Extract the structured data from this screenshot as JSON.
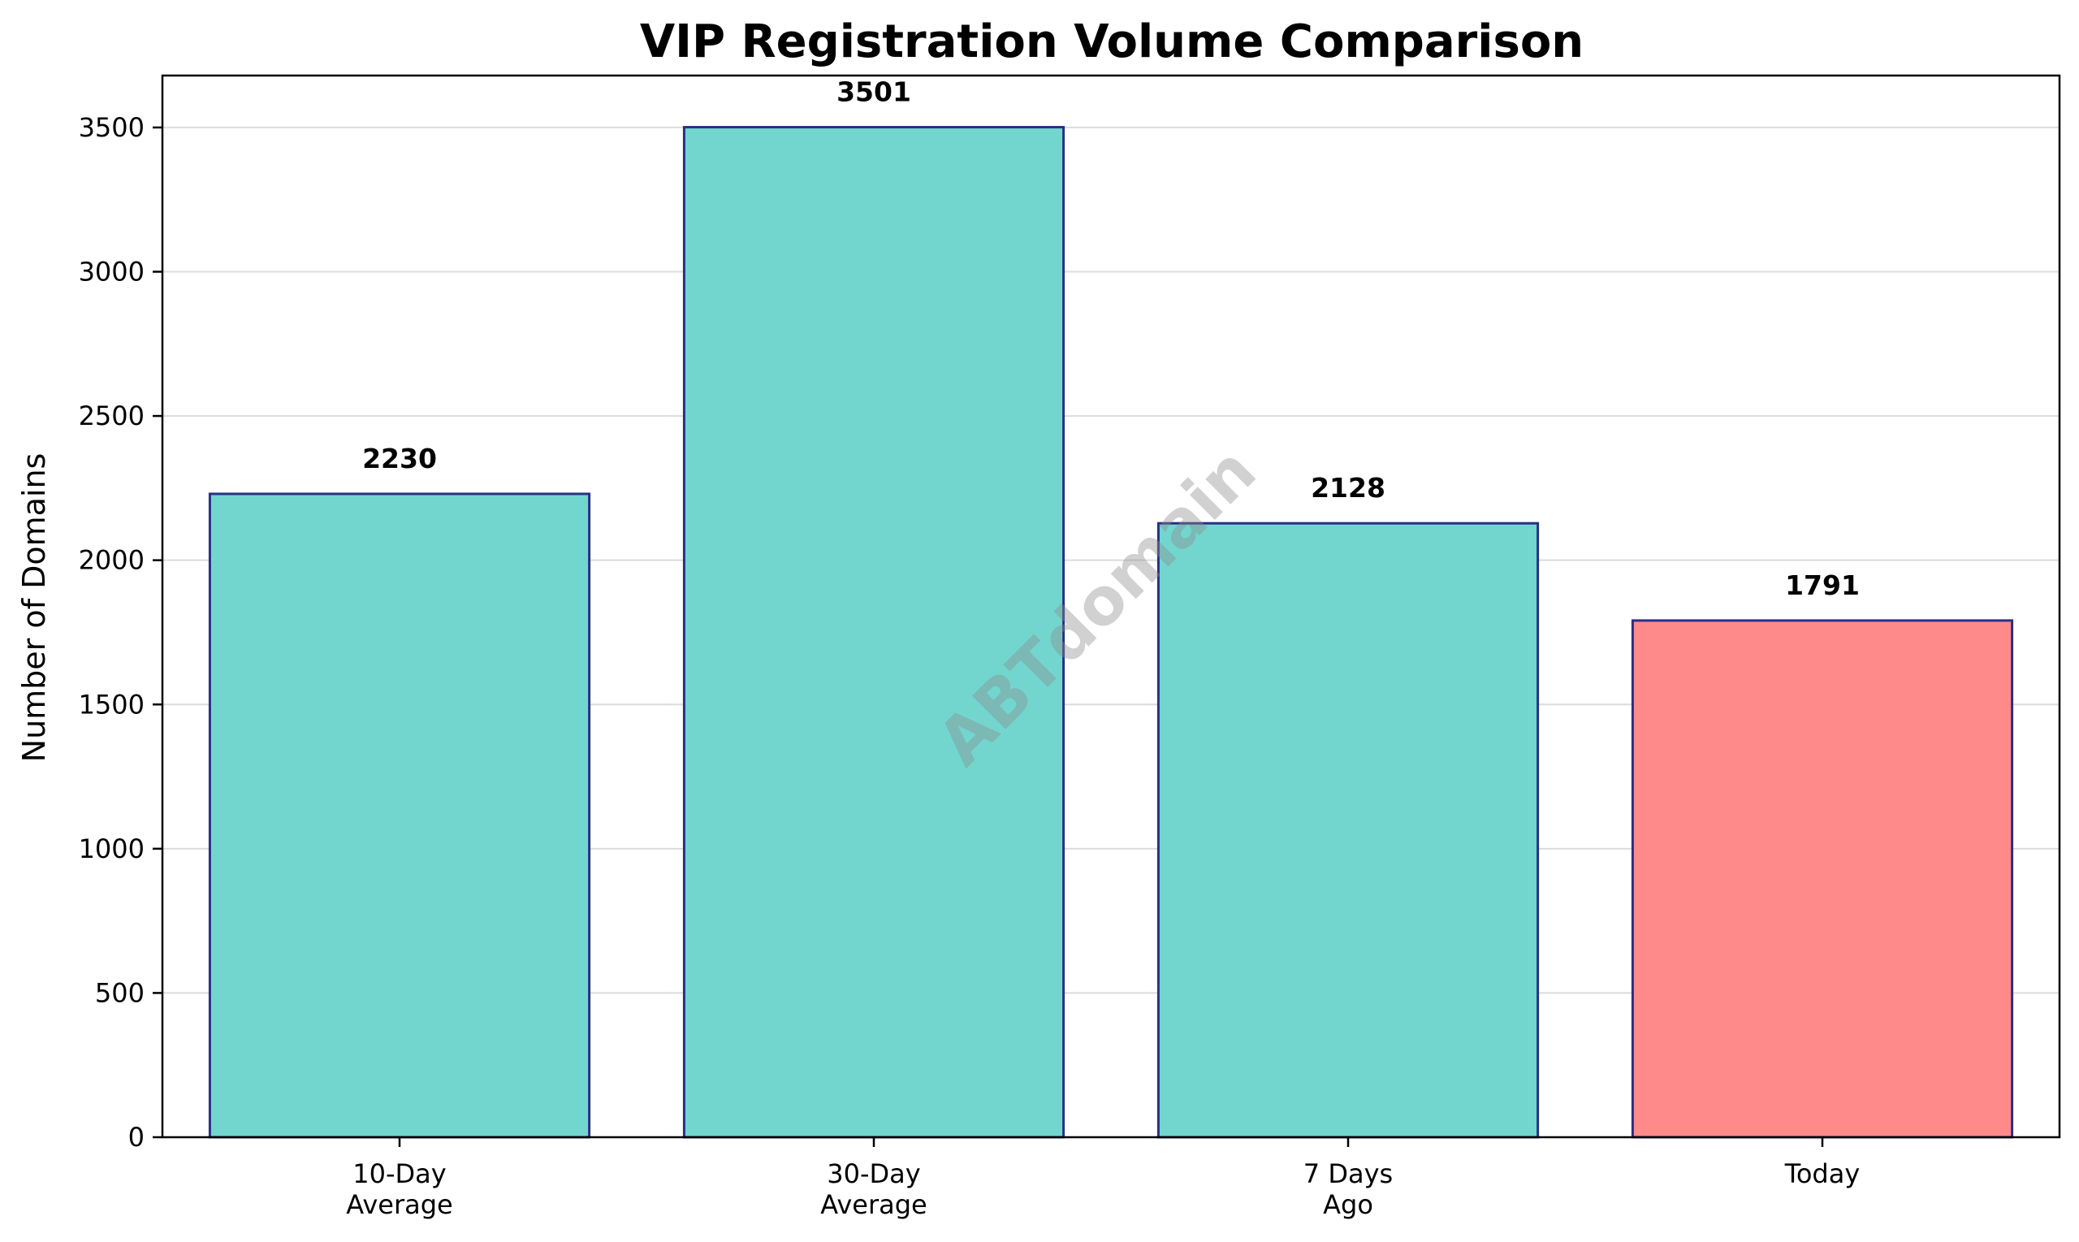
{
  "chart_data": {
    "type": "bar",
    "title": "VIP Registration Volume Comparison",
    "xlabel": "",
    "ylabel": "Number of Domains",
    "categories": [
      [
        "10-Day",
        "Average"
      ],
      [
        "30-Day",
        "Average"
      ],
      [
        "7 Days",
        "Ago"
      ],
      [
        "Today"
      ]
    ],
    "values": [
      2230,
      3501,
      2128,
      1791
    ],
    "value_labels": [
      "2230",
      "3501",
      "2128",
      "1791"
    ],
    "bar_colors": [
      "#72d6cf",
      "#72d6cf",
      "#72d6cf",
      "#ff8a8a"
    ],
    "bar_edge_color": "#2a2f85",
    "ylim": [
      0,
      3680
    ],
    "yticks": [
      0,
      500,
      1000,
      1500,
      2000,
      2500,
      3000,
      3500
    ],
    "grid": true,
    "grid_axis": "y",
    "watermark": "ABTdomain"
  }
}
